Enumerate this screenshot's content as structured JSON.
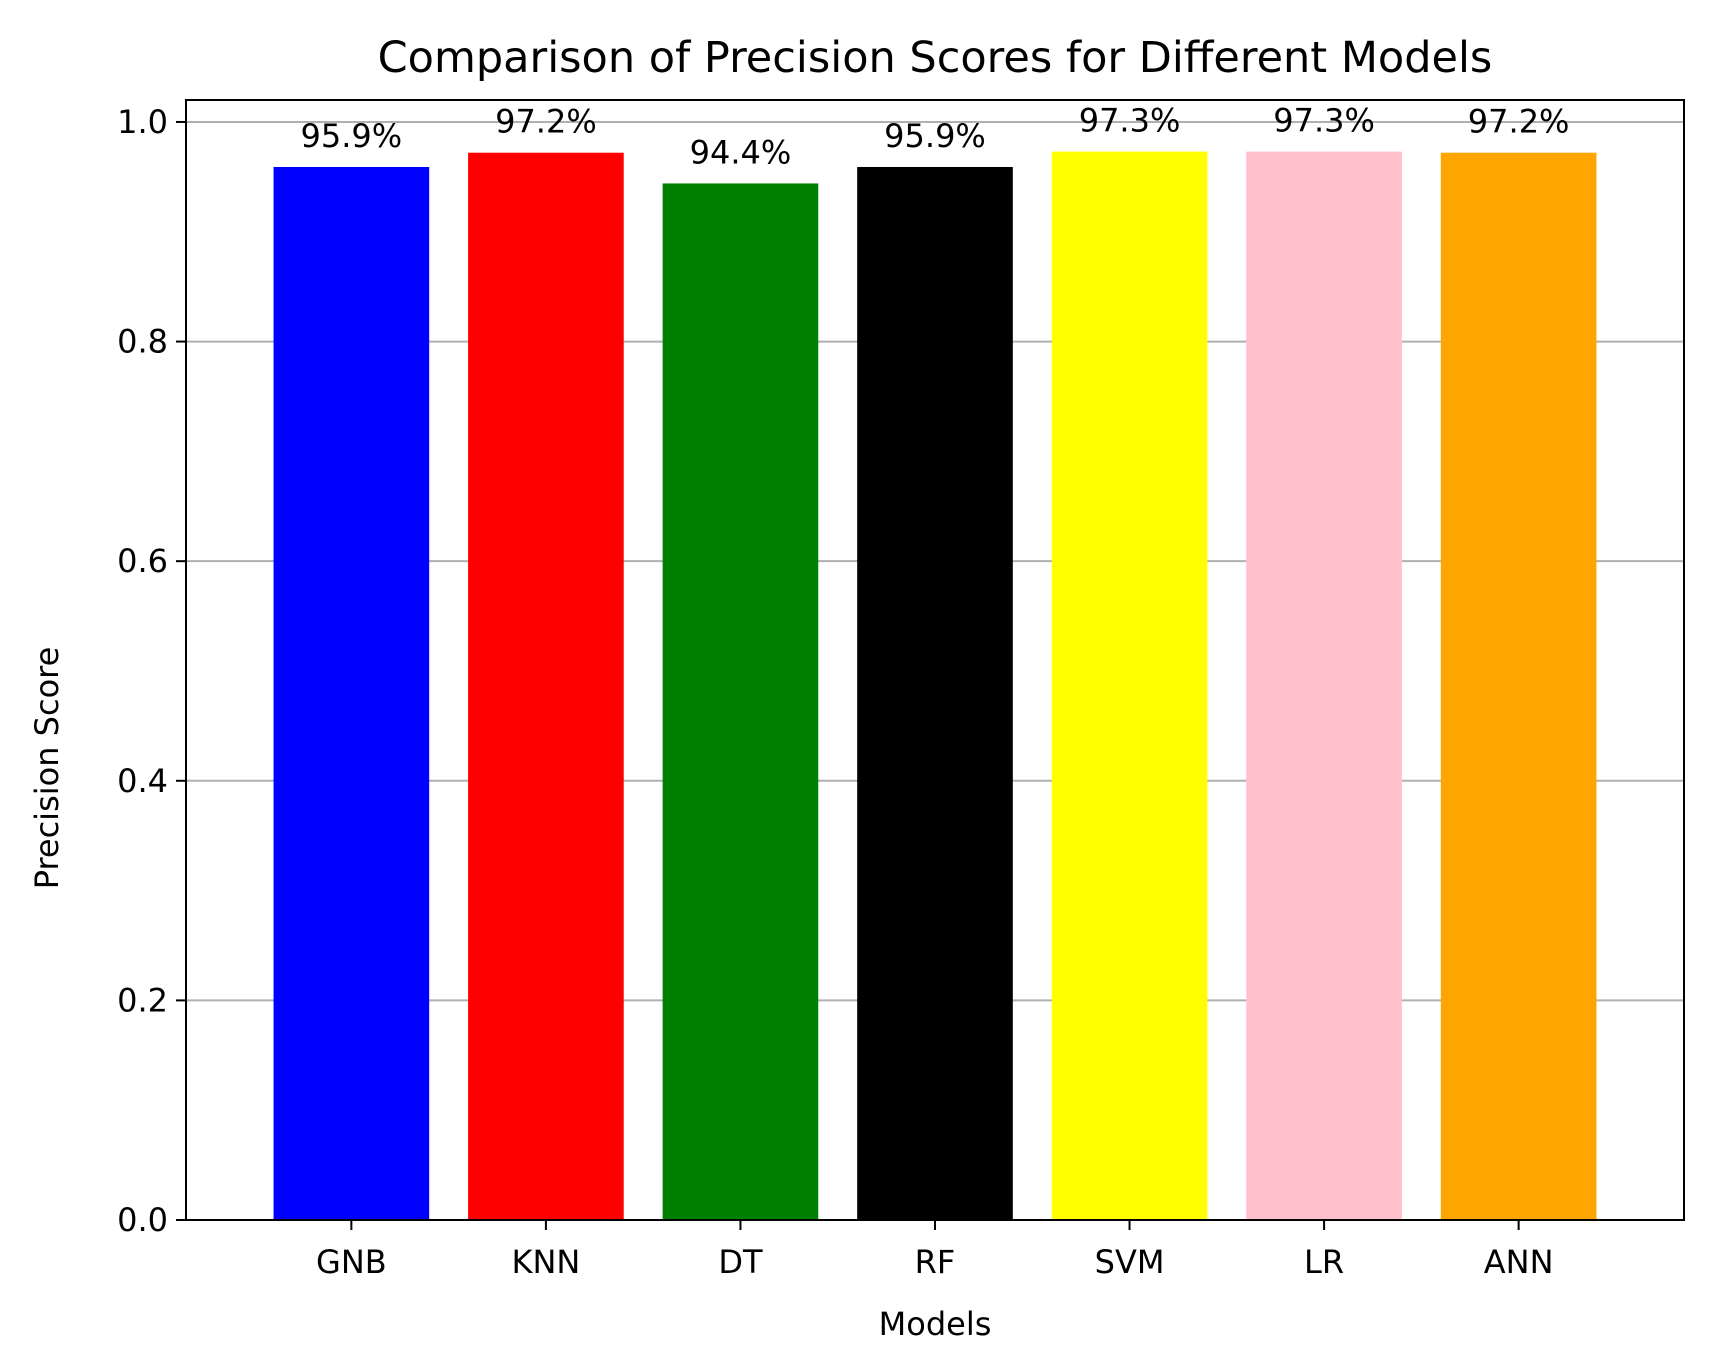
{
  "chart_data": {
    "type": "bar",
    "title": "Comparison of Precision Scores for Different Models",
    "xlabel": "Models",
    "ylabel": "Precision Score",
    "categories": [
      "GNB",
      "KNN",
      "DT",
      "RF",
      "SVM",
      "LR",
      "ANN"
    ],
    "values": [
      0.959,
      0.972,
      0.944,
      0.959,
      0.973,
      0.973,
      0.972
    ],
    "data_labels": [
      "95.9%",
      "97.2%",
      "94.4%",
      "95.9%",
      "97.3%",
      "97.3%",
      "97.2%"
    ],
    "colors": [
      "#0000ff",
      "#ff0000",
      "#008000",
      "#000000",
      "#ffff00",
      "#ffc0cb",
      "#ffa500"
    ],
    "ylim": [
      0,
      1.02
    ],
    "yticks": [
      "0.0",
      "0.2",
      "0.4",
      "0.6",
      "0.8",
      "1.0"
    ],
    "grid": "y"
  }
}
